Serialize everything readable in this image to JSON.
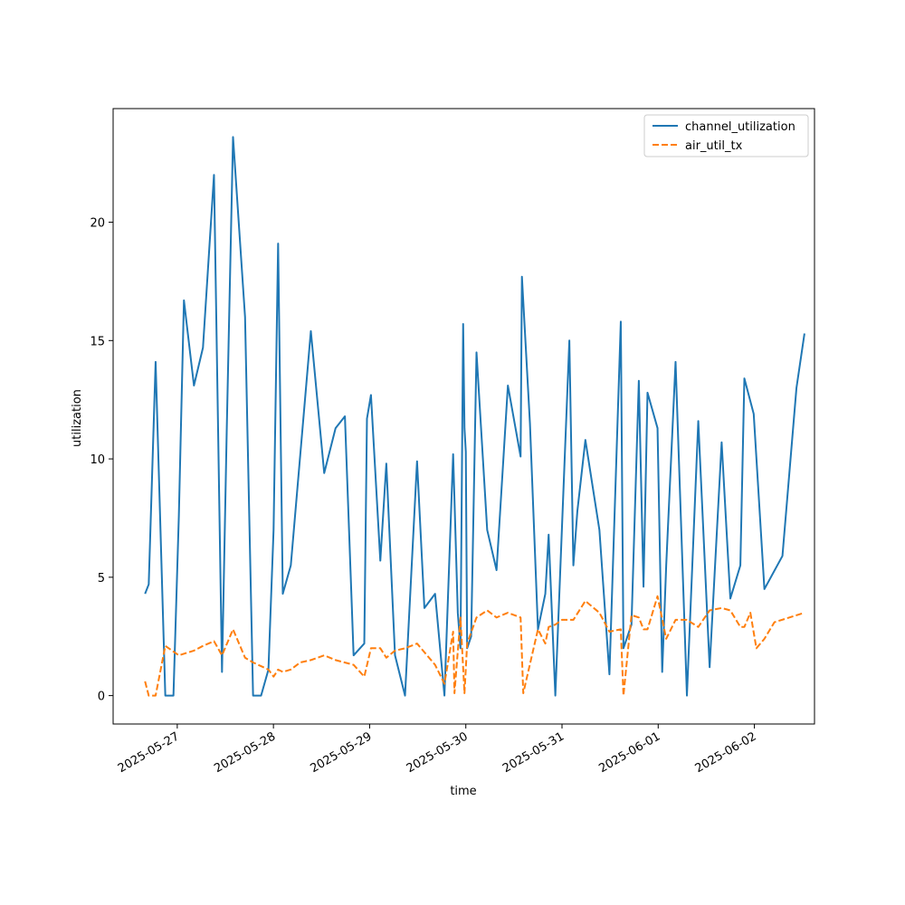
{
  "chart_data": {
    "type": "line",
    "title": "",
    "xlabel": "time",
    "ylabel": "utilization",
    "grid": false,
    "legend_position": "top-right",
    "xlim": [
      "2025-05-26 08:00",
      "2025-06-02 15:00"
    ],
    "ylim": [
      -1.2,
      24.8
    ],
    "x_ticks": [
      "2025-05-27",
      "2025-05-28",
      "2025-05-29",
      "2025-05-30",
      "2025-05-31",
      "2025-06-01",
      "2025-06-02"
    ],
    "y_ticks": [
      0,
      5,
      10,
      15,
      20
    ],
    "series": [
      {
        "name": "channel_utilization",
        "color": "#1f77b4",
        "style": "solid",
        "points": [
          [
            "2025-05-26 15:58",
            4.3
          ],
          [
            "2025-05-26 16:53",
            4.7
          ],
          [
            "2025-05-26 18:36",
            14.1
          ],
          [
            "2025-05-26 21:01",
            0.0
          ],
          [
            "2025-05-26 23:03",
            0.0
          ],
          [
            "2025-05-27 00:24",
            7.6
          ],
          [
            "2025-05-27 01:40",
            16.7
          ],
          [
            "2025-05-27 04:10",
            13.1
          ],
          [
            "2025-05-27 06:25",
            14.7
          ],
          [
            "2025-05-27 09:10",
            22.0
          ],
          [
            "2025-05-27 11:10",
            1.0
          ],
          [
            "2025-05-27 12:20",
            11.1
          ],
          [
            "2025-05-27 13:55",
            23.6
          ],
          [
            "2025-05-27 16:55",
            16.0
          ],
          [
            "2025-05-27 18:55",
            0.0
          ],
          [
            "2025-05-27 20:55",
            0.0
          ],
          [
            "2025-05-27 22:45",
            1.1
          ],
          [
            "2025-05-28 00:02",
            7.0
          ],
          [
            "2025-05-28 01:10",
            19.1
          ],
          [
            "2025-05-28 02:20",
            4.3
          ],
          [
            "2025-05-28 04:20",
            5.5
          ],
          [
            "2025-05-28 09:20",
            15.4
          ],
          [
            "2025-05-28 12:40",
            9.4
          ],
          [
            "2025-05-28 15:30",
            11.3
          ],
          [
            "2025-05-28 17:50",
            11.8
          ],
          [
            "2025-05-28 20:00",
            1.7
          ],
          [
            "2025-05-28 22:40",
            2.2
          ],
          [
            "2025-05-28 23:20",
            11.7
          ],
          [
            "2025-05-29 00:20",
            12.7
          ],
          [
            "2025-05-29 02:40",
            5.7
          ],
          [
            "2025-05-29 04:10",
            9.8
          ],
          [
            "2025-05-29 06:20",
            1.7
          ],
          [
            "2025-05-29 08:50",
            0.0
          ],
          [
            "2025-05-29 11:50",
            9.9
          ],
          [
            "2025-05-29 13:40",
            3.7
          ],
          [
            "2025-05-29 16:20",
            4.3
          ],
          [
            "2025-05-29 18:40",
            0.0
          ],
          [
            "2025-05-29 20:50",
            10.2
          ],
          [
            "2025-05-29 22:00",
            3.5
          ],
          [
            "2025-05-29 22:40",
            2.0
          ],
          [
            "2025-05-29 23:20",
            15.7
          ],
          [
            "2025-05-29 23:40",
            11.3
          ],
          [
            "2025-05-30 00:00",
            10.3
          ],
          [
            "2025-05-30 00:20",
            2.0
          ],
          [
            "2025-05-30 01:20",
            2.5
          ],
          [
            "2025-05-30 02:40",
            14.5
          ],
          [
            "2025-05-30 05:20",
            7.0
          ],
          [
            "2025-05-30 07:40",
            5.3
          ],
          [
            "2025-05-30 10:30",
            13.1
          ],
          [
            "2025-05-30 13:40",
            10.1
          ],
          [
            "2025-05-30 14:00",
            17.7
          ],
          [
            "2025-05-30 16:00",
            11.5
          ],
          [
            "2025-05-30 18:00",
            2.8
          ],
          [
            "2025-05-30 19:50",
            4.3
          ],
          [
            "2025-05-30 20:40",
            6.8
          ],
          [
            "2025-05-30 22:20",
            0.0
          ],
          [
            "2025-05-31 01:50",
            15.0
          ],
          [
            "2025-05-31 02:50",
            5.5
          ],
          [
            "2025-05-31 03:50",
            7.8
          ],
          [
            "2025-05-31 05:50",
            10.8
          ],
          [
            "2025-05-31 09:20",
            7.0
          ],
          [
            "2025-05-31 11:50",
            0.9
          ],
          [
            "2025-05-31 14:40",
            15.8
          ],
          [
            "2025-05-31 15:20",
            2.0
          ],
          [
            "2025-05-31 17:20",
            3.0
          ],
          [
            "2025-05-31 19:10",
            13.3
          ],
          [
            "2025-05-31 20:20",
            4.6
          ],
          [
            "2025-05-31 21:20",
            12.8
          ],
          [
            "2025-05-31 23:50",
            11.3
          ],
          [
            "2025-06-01 01:00",
            1.0
          ],
          [
            "2025-06-01 02:00",
            5.5
          ],
          [
            "2025-06-01 04:20",
            14.1
          ],
          [
            "2025-06-01 07:10",
            0.0
          ],
          [
            "2025-06-01 10:00",
            11.6
          ],
          [
            "2025-06-01 12:50",
            1.2
          ],
          [
            "2025-06-01 15:50",
            10.7
          ],
          [
            "2025-06-01 18:00",
            4.1
          ],
          [
            "2025-06-01 20:30",
            5.5
          ],
          [
            "2025-06-01 21:30",
            13.4
          ],
          [
            "2025-06-01 23:50",
            11.9
          ],
          [
            "2025-06-02 02:30",
            4.5
          ],
          [
            "2025-06-02 07:00",
            5.9
          ],
          [
            "2025-06-02 10:30",
            13.0
          ],
          [
            "2025-06-02 12:30",
            15.3
          ]
        ]
      },
      {
        "name": "air_util_tx",
        "color": "#ff7f0e",
        "style": "dashed",
        "points": [
          [
            "2025-05-26 15:58",
            0.6
          ],
          [
            "2025-05-26 16:53",
            0.0
          ],
          [
            "2025-05-26 18:36",
            0.0
          ],
          [
            "2025-05-26 21:01",
            2.1
          ],
          [
            "2025-05-27 00:24",
            1.7
          ],
          [
            "2025-05-27 04:10",
            1.9
          ],
          [
            "2025-05-27 06:25",
            2.1
          ],
          [
            "2025-05-27 09:10",
            2.3
          ],
          [
            "2025-05-27 11:10",
            1.7
          ],
          [
            "2025-05-27 13:55",
            2.8
          ],
          [
            "2025-05-27 16:55",
            1.6
          ],
          [
            "2025-05-27 18:55",
            1.4
          ],
          [
            "2025-05-27 22:45",
            1.1
          ],
          [
            "2025-05-28 00:02",
            0.8
          ],
          [
            "2025-05-28 01:10",
            1.1
          ],
          [
            "2025-05-28 02:20",
            1.0
          ],
          [
            "2025-05-28 04:20",
            1.1
          ],
          [
            "2025-05-28 06:40",
            1.4
          ],
          [
            "2025-05-28 09:20",
            1.5
          ],
          [
            "2025-05-28 12:40",
            1.7
          ],
          [
            "2025-05-28 15:30",
            1.5
          ],
          [
            "2025-05-28 20:00",
            1.3
          ],
          [
            "2025-05-28 22:40",
            0.8
          ],
          [
            "2025-05-29 00:20",
            2.0
          ],
          [
            "2025-05-29 02:40",
            2.0
          ],
          [
            "2025-05-29 04:10",
            1.6
          ],
          [
            "2025-05-29 06:20",
            1.9
          ],
          [
            "2025-05-29 08:50",
            2.0
          ],
          [
            "2025-05-29 11:50",
            2.2
          ],
          [
            "2025-05-29 16:20",
            1.3
          ],
          [
            "2025-05-29 18:40",
            0.5
          ],
          [
            "2025-05-29 20:50",
            2.7
          ],
          [
            "2025-05-29 21:10",
            0.1
          ],
          [
            "2025-05-29 22:40",
            3.3
          ],
          [
            "2025-05-29 23:40",
            0.1
          ],
          [
            "2025-05-30 00:20",
            2.2
          ],
          [
            "2025-05-30 02:40",
            3.3
          ],
          [
            "2025-05-30 05:20",
            3.6
          ],
          [
            "2025-05-30 07:40",
            3.3
          ],
          [
            "2025-05-30 10:30",
            3.5
          ],
          [
            "2025-05-30 13:40",
            3.3
          ],
          [
            "2025-05-30 14:20",
            0.1
          ],
          [
            "2025-05-30 18:00",
            2.8
          ],
          [
            "2025-05-30 19:50",
            2.2
          ],
          [
            "2025-05-30 20:40",
            2.9
          ],
          [
            "2025-05-30 22:20",
            3.0
          ],
          [
            "2025-05-31 00:00",
            3.2
          ],
          [
            "2025-05-31 02:50",
            3.2
          ],
          [
            "2025-05-31 05:50",
            4.0
          ],
          [
            "2025-05-31 09:20",
            3.5
          ],
          [
            "2025-05-31 11:50",
            2.7
          ],
          [
            "2025-05-31 14:40",
            2.8
          ],
          [
            "2025-05-31 15:20",
            0.0
          ],
          [
            "2025-05-31 17:20",
            3.4
          ],
          [
            "2025-05-31 19:10",
            3.3
          ],
          [
            "2025-05-31 20:20",
            2.8
          ],
          [
            "2025-05-31 21:20",
            2.8
          ],
          [
            "2025-05-31 23:50",
            4.2
          ],
          [
            "2025-06-01 02:00",
            2.4
          ],
          [
            "2025-06-01 04:20",
            3.2
          ],
          [
            "2025-06-01 07:10",
            3.2
          ],
          [
            "2025-06-01 10:00",
            2.9
          ],
          [
            "2025-06-01 12:50",
            3.6
          ],
          [
            "2025-06-01 15:50",
            3.7
          ],
          [
            "2025-06-01 18:00",
            3.6
          ],
          [
            "2025-06-01 20:30",
            2.9
          ],
          [
            "2025-06-01 21:30",
            2.9
          ],
          [
            "2025-06-01 23:00",
            3.5
          ],
          [
            "2025-06-02 00:30",
            2.0
          ],
          [
            "2025-06-02 02:30",
            2.4
          ],
          [
            "2025-06-02 05:00",
            3.1
          ],
          [
            "2025-06-02 12:30",
            3.5
          ]
        ]
      }
    ]
  }
}
